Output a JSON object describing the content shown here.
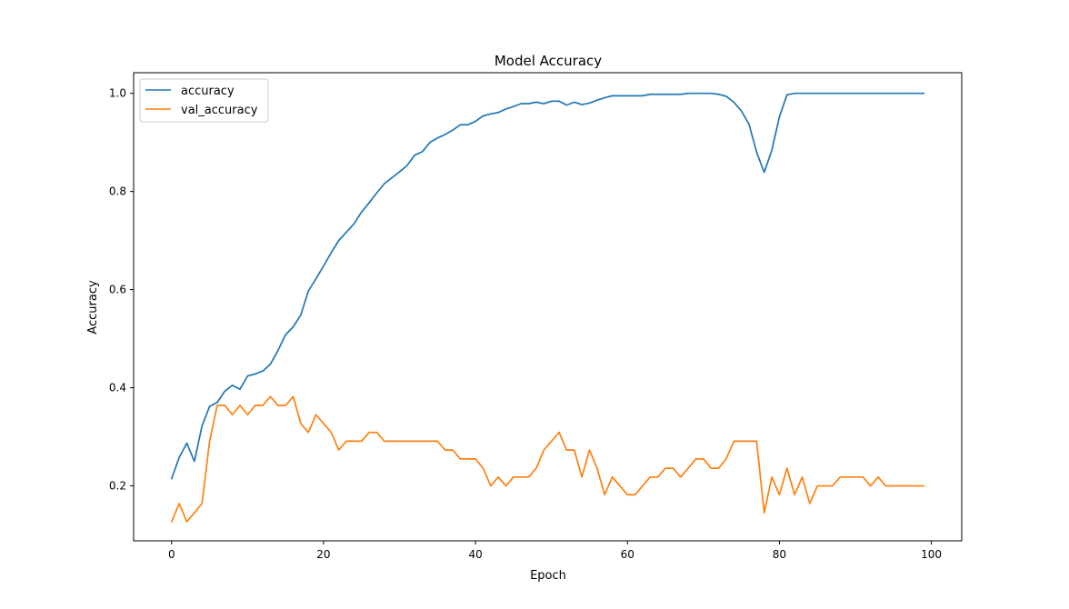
{
  "chart_data": {
    "type": "line",
    "title": "Model Accuracy",
    "xlabel": "Epoch",
    "ylabel": "Accuracy",
    "xlim": [
      -5,
      104
    ],
    "ylim": [
      0.088,
      1.042
    ],
    "xticks": [
      0,
      20,
      40,
      60,
      80,
      100
    ],
    "yticks": [
      0.2,
      0.4,
      0.6,
      0.8,
      1.0
    ],
    "xtick_labels": [
      "0",
      "20",
      "40",
      "60",
      "80",
      "100"
    ],
    "ytick_labels": [
      "0.2",
      "0.4",
      "0.6",
      "0.8",
      "1.0"
    ],
    "grid": false,
    "legend_position": "top-left",
    "colors": {
      "accuracy": "#1f77b4",
      "val_accuracy": "#ff7f0e"
    },
    "x": [
      0,
      1,
      2,
      3,
      4,
      5,
      6,
      7,
      8,
      9,
      10,
      11,
      12,
      13,
      14,
      15,
      16,
      17,
      18,
      19,
      20,
      21,
      22,
      23,
      24,
      25,
      26,
      27,
      28,
      29,
      30,
      31,
      32,
      33,
      34,
      35,
      36,
      37,
      38,
      39,
      40,
      41,
      42,
      43,
      44,
      45,
      46,
      47,
      48,
      49,
      50,
      51,
      52,
      53,
      54,
      55,
      56,
      57,
      58,
      59,
      60,
      61,
      62,
      63,
      64,
      65,
      66,
      67,
      68,
      69,
      70,
      71,
      72,
      73,
      74,
      75,
      76,
      77,
      78,
      79,
      80,
      81,
      82,
      83,
      84,
      85,
      86,
      87,
      88,
      89,
      90,
      91,
      92,
      93,
      94,
      95,
      96,
      97,
      98,
      99
    ],
    "series": [
      {
        "name": "accuracy",
        "values": [
          0.215,
          0.258,
          0.287,
          0.25,
          0.322,
          0.362,
          0.37,
          0.393,
          0.405,
          0.397,
          0.424,
          0.428,
          0.434,
          0.448,
          0.476,
          0.508,
          0.524,
          0.548,
          0.597,
          0.622,
          0.648,
          0.675,
          0.7,
          0.717,
          0.734,
          0.758,
          0.777,
          0.797,
          0.816,
          0.828,
          0.84,
          0.853,
          0.874,
          0.881,
          0.9,
          0.909,
          0.916,
          0.925,
          0.936,
          0.936,
          0.943,
          0.954,
          0.958,
          0.961,
          0.968,
          0.973,
          0.979,
          0.979,
          0.982,
          0.979,
          0.984,
          0.984,
          0.976,
          0.982,
          0.977,
          0.98,
          0.986,
          0.991,
          0.995,
          0.995,
          0.995,
          0.995,
          0.995,
          0.998,
          0.998,
          0.998,
          0.998,
          0.998,
          1.0,
          1.0,
          1.0,
          1.0,
          0.998,
          0.994,
          0.982,
          0.964,
          0.937,
          0.88,
          0.839,
          0.884,
          0.952,
          0.997,
          1.0,
          1.0,
          1.0,
          1.0,
          1.0,
          1.0,
          1.0,
          1.0,
          1.0,
          1.0,
          1.0,
          1.0,
          1.0,
          1.0,
          1.0,
          1.0,
          1.0,
          1.0
        ]
      },
      {
        "name": "val_accuracy",
        "values": [
          0.127,
          0.164,
          0.127,
          0.145,
          0.164,
          0.291,
          0.364,
          0.364,
          0.345,
          0.364,
          0.345,
          0.364,
          0.364,
          0.382,
          0.364,
          0.364,
          0.382,
          0.327,
          0.309,
          0.345,
          0.327,
          0.309,
          0.273,
          0.291,
          0.291,
          0.291,
          0.309,
          0.309,
          0.291,
          0.291,
          0.291,
          0.291,
          0.291,
          0.291,
          0.291,
          0.291,
          0.273,
          0.273,
          0.255,
          0.255,
          0.255,
          0.236,
          0.2,
          0.218,
          0.2,
          0.218,
          0.218,
          0.218,
          0.236,
          0.273,
          0.291,
          0.309,
          0.273,
          0.273,
          0.218,
          0.273,
          0.236,
          0.182,
          0.218,
          0.2,
          0.182,
          0.182,
          0.2,
          0.218,
          0.218,
          0.236,
          0.236,
          0.218,
          0.236,
          0.255,
          0.255,
          0.236,
          0.236,
          0.255,
          0.291,
          0.291,
          0.291,
          0.291,
          0.145,
          0.218,
          0.182,
          0.236,
          0.182,
          0.218,
          0.164,
          0.2,
          0.2,
          0.2,
          0.218,
          0.218,
          0.218,
          0.218,
          0.2,
          0.218,
          0.2,
          0.2,
          0.2,
          0.2,
          0.2,
          0.2
        ]
      }
    ]
  }
}
